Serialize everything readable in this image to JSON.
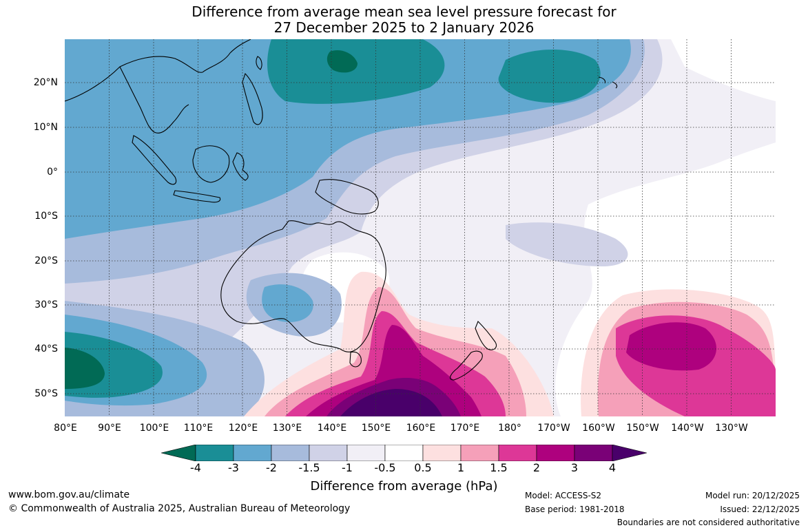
{
  "title": {
    "line1": "Difference from average mean sea level pressure forecast for",
    "line2": "27 December 2025 to 2 January 2026"
  },
  "map": {
    "lat_labels": [
      "20°N",
      "10°N",
      "0°",
      "10°S",
      "20°S",
      "30°S",
      "40°S",
      "50°S"
    ],
    "lon_labels": [
      "80°E",
      "90°E",
      "100°E",
      "110°E",
      "120°E",
      "130°E",
      "140°E",
      "150°E",
      "160°E",
      "170°E",
      "180°",
      "170°W",
      "160°W",
      "150°W",
      "140°W",
      "130°W"
    ],
    "gridlines": "dotted",
    "extent": {
      "lon_min": 80,
      "lon_max": 240,
      "lat_min": -55,
      "lat_max": 30
    }
  },
  "colorbar": {
    "ticks": [
      "-4",
      "-3",
      "-2",
      "-1.5",
      "-1",
      "-0.5",
      "0.5",
      "1",
      "1.5",
      "2",
      "3",
      "4"
    ],
    "colors": [
      "#016a55",
      "#1a8e96",
      "#62a8d0",
      "#a7bbdc",
      "#d0d2e7",
      "#f1eff6",
      "#ffffff",
      "#fde0e0",
      "#f5a0b9",
      "#dd3797",
      "#ae017e",
      "#7a0177",
      "#49006a"
    ],
    "label": "Difference from average (hPa)"
  },
  "footer": {
    "website": "www.bom.gov.au/climate",
    "copyright": "© Commonwealth of Australia 2025, Australian Bureau of Meteorology",
    "model": "Model: ACCESS-S2",
    "base_period": "Base period: 1981-2018",
    "model_run": "Model run: 20/12/2025",
    "issued": "Issued: 22/12/2025",
    "disclaimer": "Boundaries are not considered authoritative"
  }
}
